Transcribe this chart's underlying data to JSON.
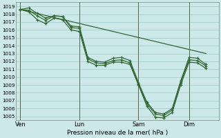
{
  "xlabel": "Pression niveau de la mer( hPa )",
  "background_color": "#cce8e8",
  "grid_color": "#99cccc",
  "line_color": "#336633",
  "vline_color": "#556655",
  "ylim_min": 1004.5,
  "ylim_max": 1019.5,
  "yticks": [
    1005,
    1006,
    1007,
    1008,
    1009,
    1010,
    1011,
    1012,
    1013,
    1014,
    1015,
    1016,
    1017,
    1018,
    1019
  ],
  "x_tick_labels": [
    "Ven",
    "Lun",
    "Sam",
    "Dim"
  ],
  "x_tick_positions": [
    0,
    7,
    14,
    20
  ],
  "x_vlines": [
    0,
    7,
    14,
    20
  ],
  "xlim_min": -0.5,
  "xlim_max": 23.5,
  "line1_x": [
    0,
    1,
    2,
    3,
    4,
    5,
    6,
    7,
    8,
    9,
    10,
    11,
    12,
    13,
    14,
    15,
    16,
    17,
    18,
    19,
    20,
    21,
    22
  ],
  "line1_y": [
    1018.6,
    1018.5,
    1017.8,
    1017.2,
    1017.8,
    1017.7,
    1016.3,
    1016.2,
    1012.3,
    1011.8,
    1011.7,
    1012.1,
    1012.2,
    1011.8,
    1009.1,
    1006.6,
    1005.3,
    1005.1,
    1005.8,
    1009.3,
    1012.2,
    1012.1,
    1011.4
  ],
  "line2_x": [
    0,
    1,
    2,
    3,
    4,
    5,
    6,
    7,
    8,
    9,
    10,
    11,
    12,
    13,
    14,
    15,
    16,
    17,
    18,
    19,
    20,
    21,
    22
  ],
  "line2_y": [
    1018.6,
    1018.3,
    1017.3,
    1016.8,
    1017.5,
    1017.3,
    1016.0,
    1015.8,
    1012.0,
    1011.5,
    1011.5,
    1011.9,
    1011.9,
    1011.6,
    1009.0,
    1006.3,
    1004.9,
    1004.8,
    1005.5,
    1009.0,
    1011.9,
    1011.8,
    1011.1
  ],
  "line3_x": [
    0,
    1,
    2,
    3,
    4,
    5,
    6,
    7,
    8,
    9,
    10,
    11,
    12,
    13,
    14,
    15,
    16,
    17,
    18,
    19,
    20,
    21,
    22
  ],
  "line3_y": [
    1018.6,
    1018.8,
    1018.1,
    1017.5,
    1017.8,
    1017.7,
    1016.5,
    1016.4,
    1012.5,
    1012.0,
    1011.9,
    1012.4,
    1012.5,
    1012.1,
    1009.3,
    1006.8,
    1005.5,
    1005.3,
    1006.0,
    1009.5,
    1012.5,
    1012.4,
    1011.6
  ],
  "ref_line_x": [
    0,
    22
  ],
  "ref_line_y": [
    1018.6,
    1013.0
  ],
  "ytick_fontsize": 5.2,
  "xtick_fontsize": 6.0,
  "xlabel_fontsize": 6.5
}
